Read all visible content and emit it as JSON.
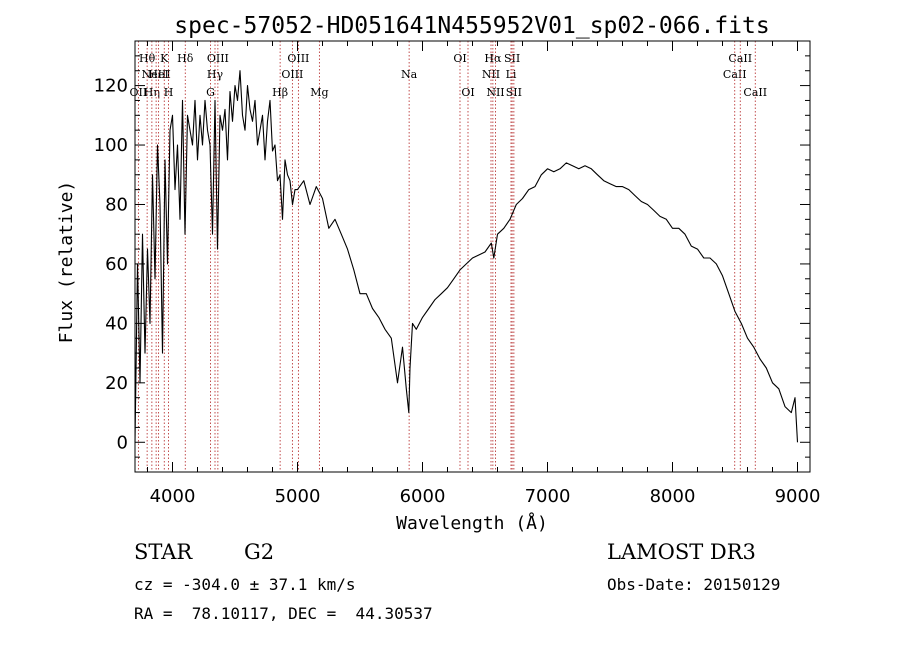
{
  "chart_data": {
    "type": "line",
    "title": "spec-57052-HD051641N455952V01_sp02-066.fits",
    "xlabel": "Wavelength (Å)",
    "ylabel": "Flux (relative)",
    "xlim": [
      3700,
      9100
    ],
    "ylim": [
      -10,
      135
    ],
    "xticks": [
      4000,
      5000,
      6000,
      7000,
      8000,
      9000
    ],
    "yticks": [
      0,
      20,
      40,
      60,
      80,
      100,
      120
    ],
    "grid": false,
    "series": [
      {
        "x": [
          3700,
          3720,
          3740,
          3760,
          3780,
          3800,
          3820,
          3840,
          3860,
          3880,
          3900,
          3920,
          3940,
          3960,
          3980,
          4000,
          4020,
          4040,
          4060,
          4080,
          4100,
          4120,
          4140,
          4160,
          4180,
          4200,
          4220,
          4240,
          4260,
          4280,
          4300,
          4320,
          4340,
          4360,
          4380,
          4400,
          4420,
          4440,
          4460,
          4480,
          4500,
          4520,
          4540,
          4560,
          4580,
          4600,
          4620,
          4640,
          4660,
          4680,
          4700,
          4720,
          4740,
          4760,
          4780,
          4800,
          4820,
          4840,
          4860,
          4880,
          4900,
          4920,
          4940,
          4960,
          4980,
          5000,
          5050,
          5100,
          5150,
          5200,
          5250,
          5300,
          5350,
          5400,
          5450,
          5500,
          5550,
          5600,
          5650,
          5700,
          5750,
          5800,
          5840,
          5870,
          5890,
          5900,
          5920,
          5950,
          6000,
          6050,
          6100,
          6150,
          6200,
          6250,
          6300,
          6350,
          6400,
          6450,
          6500,
          6550,
          6570,
          6600,
          6650,
          6700,
          6750,
          6800,
          6850,
          6900,
          6950,
          7000,
          7050,
          7100,
          7150,
          7200,
          7250,
          7300,
          7350,
          7400,
          7450,
          7500,
          7550,
          7600,
          7650,
          7700,
          7750,
          7800,
          7850,
          7900,
          7950,
          8000,
          8050,
          8100,
          8150,
          8200,
          8250,
          8300,
          8350,
          8400,
          8450,
          8500,
          8550,
          8600,
          8650,
          8700,
          8750,
          8800,
          8850,
          8900,
          8950,
          8980,
          9000
        ],
        "y": [
          0,
          60,
          20,
          70,
          30,
          65,
          40,
          90,
          55,
          100,
          80,
          30,
          95,
          60,
          105,
          110,
          85,
          100,
          75,
          115,
          70,
          110,
          105,
          100,
          115,
          95,
          110,
          100,
          115,
          105,
          100,
          70,
          115,
          65,
          110,
          105,
          112,
          95,
          118,
          108,
          120,
          115,
          125,
          110,
          105,
          120,
          112,
          108,
          115,
          100,
          105,
          110,
          95,
          108,
          115,
          98,
          100,
          88,
          90,
          75,
          95,
          90,
          88,
          80,
          85,
          85,
          88,
          80,
          86,
          82,
          72,
          75,
          70,
          65,
          58,
          50,
          50,
          45,
          42,
          38,
          35,
          20,
          32,
          18,
          10,
          25,
          40,
          38,
          42,
          45,
          48,
          50,
          52,
          55,
          58,
          60,
          62,
          63,
          64,
          67,
          62,
          70,
          72,
          75,
          80,
          82,
          85,
          86,
          90,
          92,
          91,
          92,
          94,
          93,
          92,
          93,
          92,
          90,
          88,
          87,
          86,
          86,
          85,
          83,
          81,
          80,
          78,
          76,
          75,
          72,
          72,
          70,
          66,
          65,
          62,
          62,
          60,
          56,
          50,
          44,
          40,
          35,
          32,
          28,
          25,
          20,
          18,
          12,
          10,
          15,
          0
        ]
      }
    ],
    "line_markers": [
      {
        "wl": 3727,
        "row": 2,
        "label": "OII"
      },
      {
        "wl": 3797,
        "row": 0,
        "label": "Hθ"
      },
      {
        "wl": 3835,
        "row": 2,
        "label": "Hη"
      },
      {
        "wl": 3869,
        "row": 1,
        "label": "NeIII"
      },
      {
        "wl": 3889,
        "row": 1,
        "label": "HeI"
      },
      {
        "wl": 3934,
        "row": 0,
        "label": "K"
      },
      {
        "wl": 3968,
        "row": 2,
        "label": "H"
      },
      {
        "wl": 4102,
        "row": 0,
        "label": "Hδ"
      },
      {
        "wl": 4304,
        "row": 2,
        "label": "G"
      },
      {
        "wl": 4340,
        "row": 1,
        "label": "Hγ"
      },
      {
        "wl": 4363,
        "row": 0,
        "label": "OIII"
      },
      {
        "wl": 4861,
        "row": 2,
        "label": "Hβ"
      },
      {
        "wl": 4959,
        "row": 1,
        "label": "OIII"
      },
      {
        "wl": 5007,
        "row": 0,
        "label": "OIII"
      },
      {
        "wl": 5175,
        "row": 2,
        "label": "Mg"
      },
      {
        "wl": 5893,
        "row": 1,
        "label": "Na"
      },
      {
        "wl": 6300,
        "row": 0,
        "label": "OI"
      },
      {
        "wl": 6364,
        "row": 2,
        "label": "OI"
      },
      {
        "wl": 6548,
        "row": 1,
        "label": "NII"
      },
      {
        "wl": 6563,
        "row": 0,
        "label": "Hα"
      },
      {
        "wl": 6584,
        "row": 2,
        "label": "NII"
      },
      {
        "wl": 6708,
        "row": 1,
        "label": "Li"
      },
      {
        "wl": 6717,
        "row": 0,
        "label": "SII"
      },
      {
        "wl": 6731,
        "row": 2,
        "label": "SII"
      },
      {
        "wl": 8498,
        "row": 1,
        "label": "CaII"
      },
      {
        "wl": 8542,
        "row": 0,
        "label": "CaII"
      },
      {
        "wl": 8662,
        "row": 2,
        "label": "CaII"
      }
    ],
    "colors": {
      "spectrum": "#000000",
      "markers": "#b22222",
      "text": "#000000"
    }
  },
  "info": {
    "object_class": "STAR",
    "subclass": "G2",
    "survey": "LAMOST DR3",
    "redshift": "cz = -304.0 ± 37.1 km/s",
    "obs_date": "Obs-Date: 20150129",
    "coords": "RA =  78.10117, DEC =  44.30537"
  }
}
